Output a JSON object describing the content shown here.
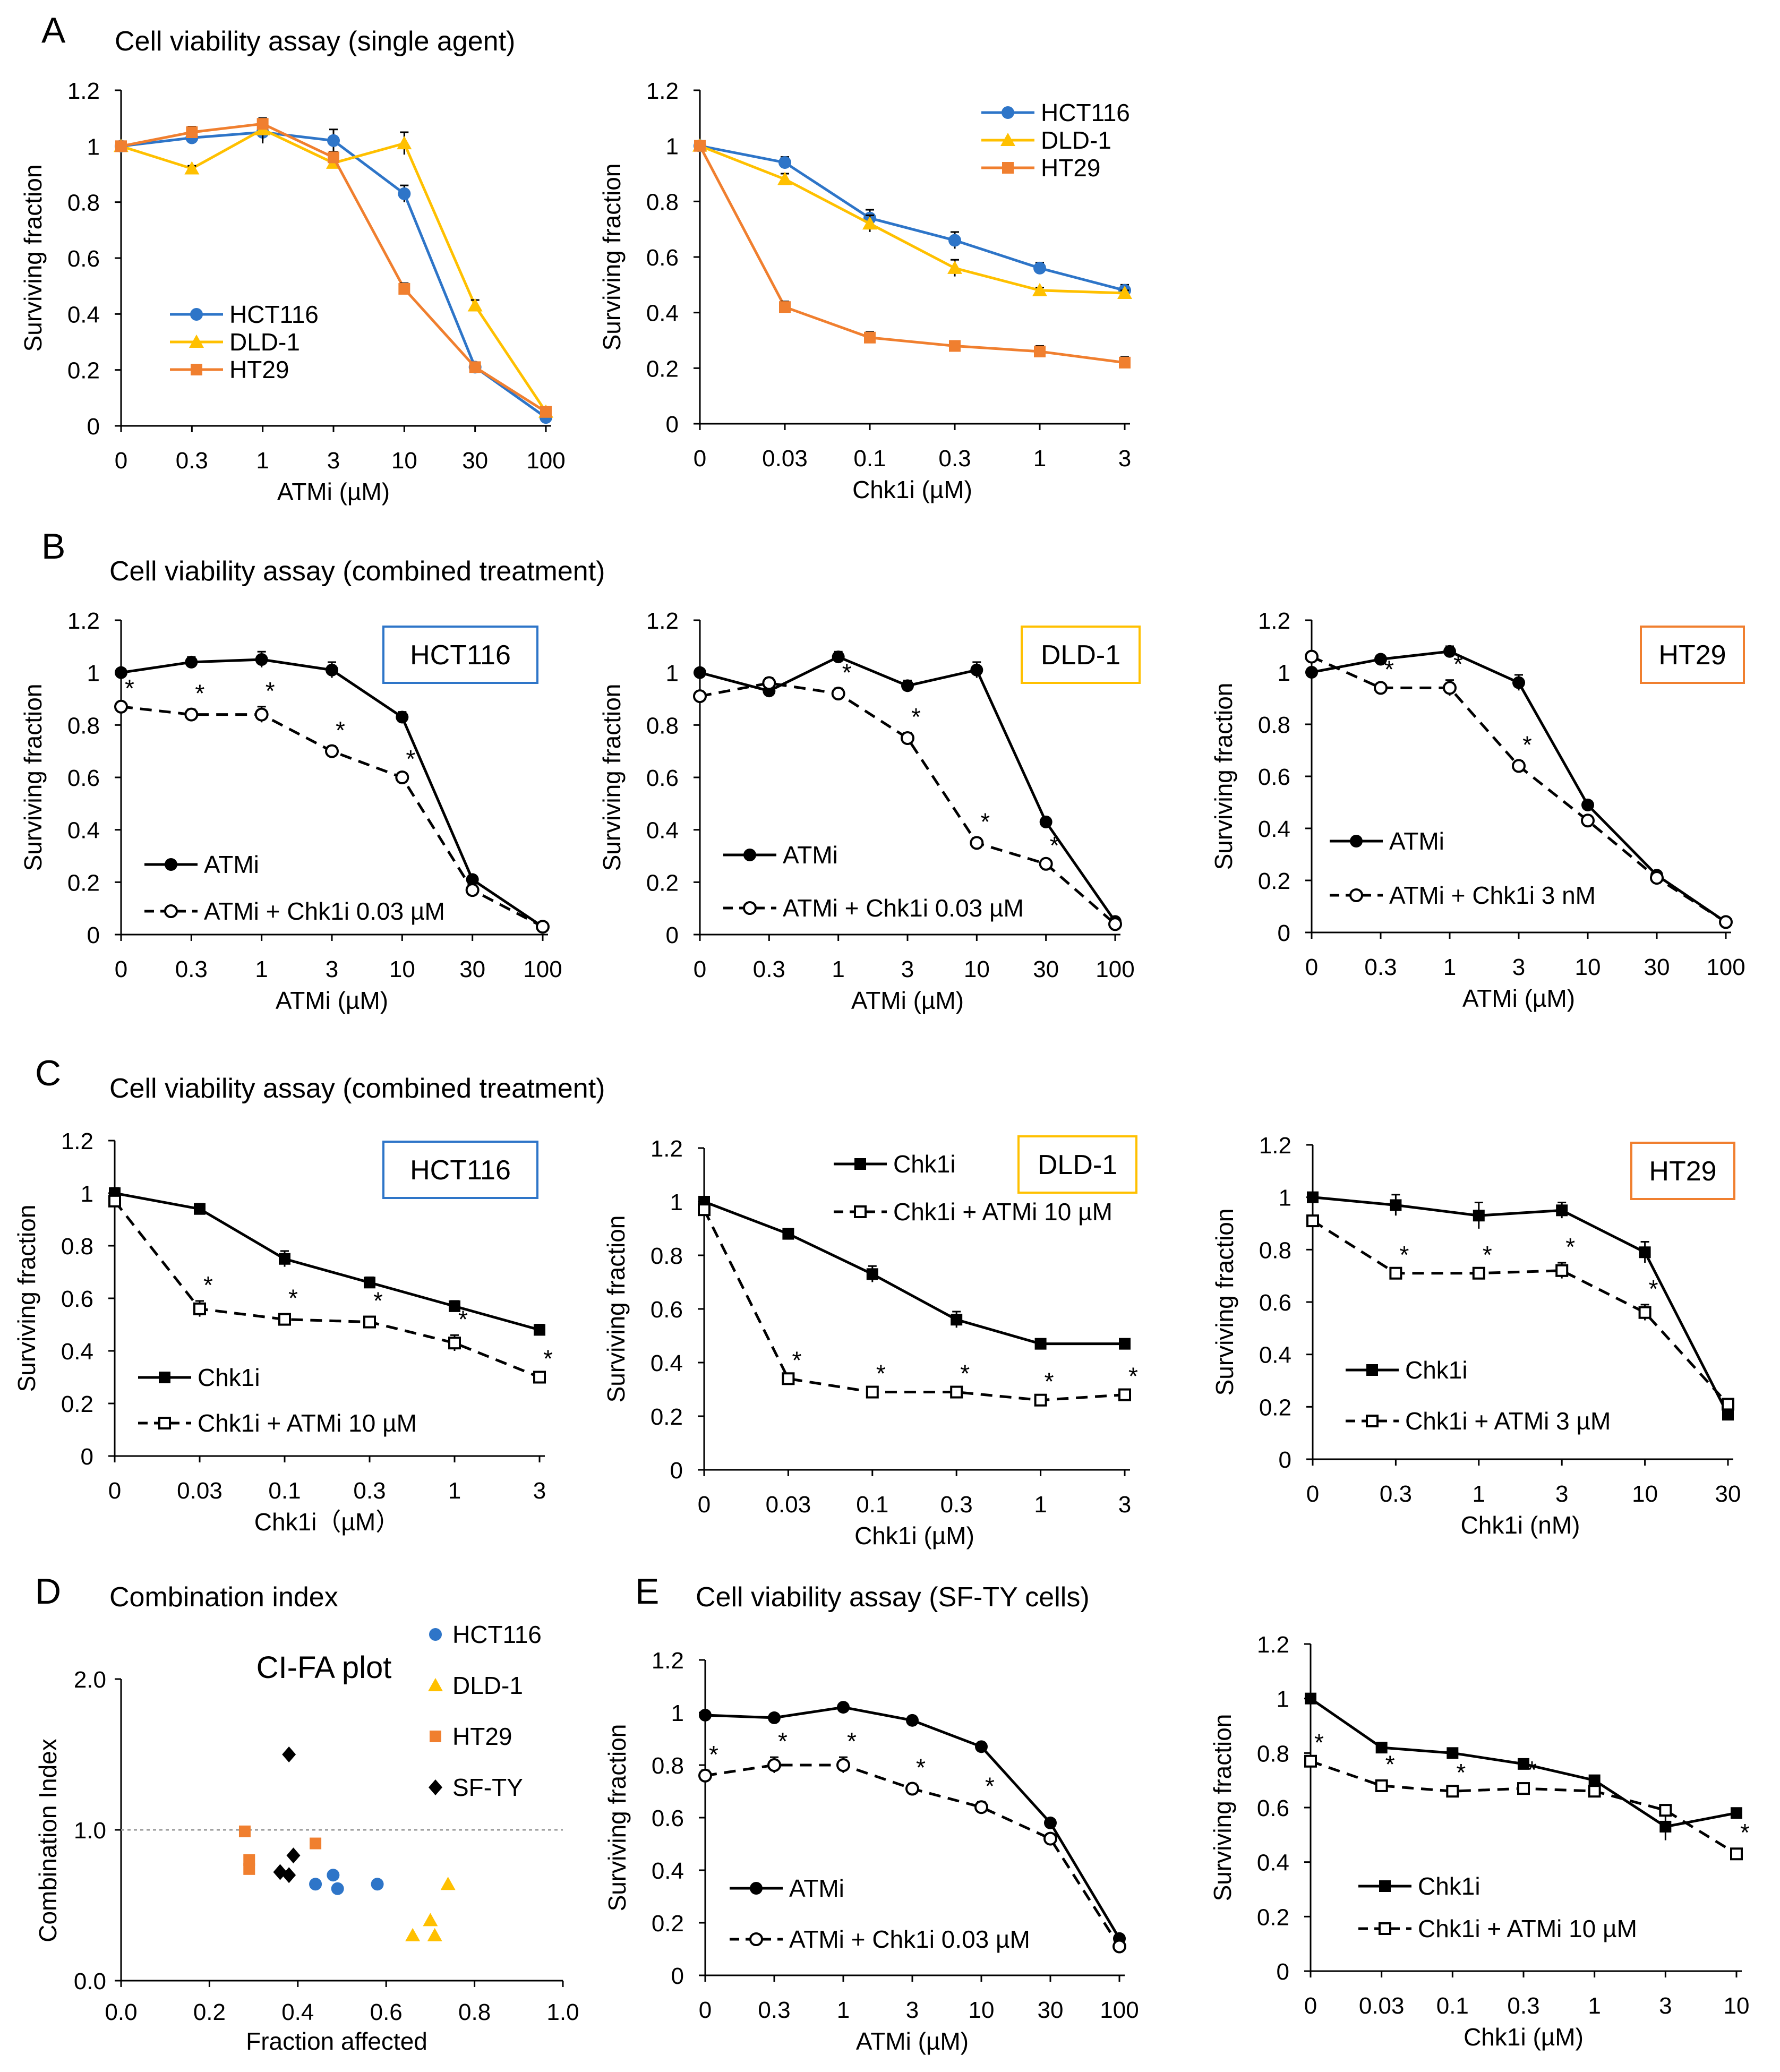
{
  "page": {
    "letters": {
      "A": "A",
      "B": "B",
      "C": "C",
      "D": "D",
      "E": "E"
    },
    "titles": {
      "A": "Cell viability assay (single agent)",
      "B": "Cell viability assay (combined treatment)",
      "C": "Cell viability assay (combined treatment)",
      "D": "Combination index",
      "E": "Cell viability assay (SF-TY cells)"
    }
  },
  "colors": {
    "HCT116": "#2E75C8",
    "DLD-1": "#FFC000",
    "HT29": "#F07F2F",
    "SF-TY": "#000000"
  },
  "chart_data": [
    {
      "id": "A1",
      "type": "line",
      "categories": [
        "0",
        "0.3",
        "1",
        "3",
        "10",
        "30",
        "100"
      ],
      "xlabel": "ATMi (µM)",
      "ylabel": "Surviving fraction",
      "ylim": [
        0,
        1.2
      ],
      "yticks": [
        "0",
        "0.2",
        "0.4",
        "0.6",
        "0.8",
        "1",
        "1.2"
      ],
      "legend": "center-left",
      "series": [
        {
          "name": "HCT116",
          "color": "#2E75C8",
          "marker": "circle",
          "values": [
            1.0,
            1.03,
            1.05,
            1.02,
            0.83,
            0.21,
            0.03
          ],
          "errors": [
            0.01,
            0.02,
            0.04,
            0.04,
            0.03,
            0.01,
            0.01
          ]
        },
        {
          "name": "DLD-1",
          "color": "#FFC000",
          "marker": "triangle",
          "values": [
            1.0,
            0.92,
            1.06,
            0.94,
            1.01,
            0.43,
            0.05
          ],
          "errors": [
            0.01,
            0.01,
            0.04,
            0.02,
            0.04,
            0.02,
            0.01
          ]
        },
        {
          "name": "HT29",
          "color": "#F07F2F",
          "marker": "square",
          "values": [
            1.0,
            1.05,
            1.08,
            0.96,
            0.49,
            0.21,
            0.05
          ],
          "errors": [
            0.01,
            0.02,
            0.02,
            0.02,
            0.02,
            0.01,
            0.01
          ]
        }
      ]
    },
    {
      "id": "A2",
      "type": "line",
      "categories": [
        "0",
        "0.03",
        "0.1",
        "0.3",
        "1",
        "3"
      ],
      "xlabel": "Chk1i (µM)",
      "ylabel": "Surviving fraction",
      "ylim": [
        0,
        1.2
      ],
      "yticks": [
        "0",
        "0.2",
        "0.4",
        "0.6",
        "0.8",
        "1",
        "1.2"
      ],
      "legend": "top-right",
      "series": [
        {
          "name": "HCT116",
          "color": "#2E75C8",
          "marker": "circle",
          "values": [
            1.0,
            0.94,
            0.74,
            0.66,
            0.56,
            0.48
          ],
          "errors": [
            0.01,
            0.02,
            0.03,
            0.03,
            0.02,
            0.02
          ]
        },
        {
          "name": "DLD-1",
          "color": "#FFC000",
          "marker": "triangle",
          "values": [
            1.0,
            0.88,
            0.72,
            0.56,
            0.48,
            0.47
          ],
          "errors": [
            0.01,
            0.02,
            0.03,
            0.03,
            0.01,
            0.01
          ]
        },
        {
          "name": "HT29",
          "color": "#F07F2F",
          "marker": "square",
          "values": [
            1.0,
            0.42,
            0.31,
            0.28,
            0.26,
            0.22
          ],
          "errors": [
            0.01,
            0.02,
            0.02,
            0.01,
            0.02,
            0.02
          ]
        }
      ]
    },
    {
      "id": "B1",
      "type": "line",
      "cellline": "HCT116",
      "cellline_color": "#2E75C8",
      "categories": [
        "0",
        "0.3",
        "1",
        "3",
        "10",
        "30",
        "100"
      ],
      "xlabel": "ATMi (µM)",
      "ylabel": "Surviving fraction",
      "ylim": [
        0,
        1.2
      ],
      "yticks": [
        "0",
        "0.2",
        "0.4",
        "0.6",
        "0.8",
        "1",
        "1.2"
      ],
      "legend": "bottom-left",
      "series": [
        {
          "name": "ATMi",
          "marker": "filled-circle",
          "dashed": false,
          "values": [
            1.0,
            1.04,
            1.05,
            1.01,
            0.83,
            0.21,
            0.03
          ],
          "errors": [
            0.01,
            0.02,
            0.03,
            0.03,
            0.02,
            0.01,
            0.01
          ]
        },
        {
          "name": "ATMi + Chk1i 0.03 µM",
          "marker": "open-circle",
          "dashed": true,
          "values": [
            0.87,
            0.84,
            0.84,
            0.7,
            0.6,
            0.17,
            0.03
          ],
          "errors": [
            0.01,
            0.02,
            0.03,
            0.02,
            0.01,
            0.01,
            0.01
          ]
        }
      ],
      "significant": [
        "*",
        "*",
        "*",
        "*",
        "*",
        "",
        ""
      ]
    },
    {
      "id": "B2",
      "type": "line",
      "cellline": "DLD-1",
      "cellline_color": "#FFC000",
      "categories": [
        "0",
        "0.3",
        "1",
        "3",
        "10",
        "30",
        "100"
      ],
      "xlabel": "ATMi (µM)",
      "ylabel": "Surviving fraction",
      "ylim": [
        0,
        1.2
      ],
      "yticks": [
        "0",
        "0.2",
        "0.4",
        "0.6",
        "0.8",
        "1",
        "1.2"
      ],
      "legend": "bottom-left",
      "series": [
        {
          "name": "ATMi",
          "marker": "filled-circle",
          "dashed": false,
          "values": [
            1.0,
            0.93,
            1.06,
            0.95,
            1.01,
            0.43,
            0.05
          ],
          "errors": [
            0.01,
            0.02,
            0.02,
            0.02,
            0.03,
            0.01,
            0.01
          ]
        },
        {
          "name": "ATMi + Chk1i 0.03 µM",
          "marker": "open-circle",
          "dashed": true,
          "values": [
            0.91,
            0.96,
            0.92,
            0.75,
            0.35,
            0.27,
            0.04
          ],
          "errors": [
            0.01,
            0.02,
            0.02,
            0.02,
            0.02,
            0.01,
            0.01
          ]
        }
      ],
      "significant": [
        "",
        "",
        "*",
        "*",
        "*",
        "*",
        ""
      ]
    },
    {
      "id": "B3",
      "type": "line",
      "cellline": "HT29",
      "cellline_color": "#F07F2F",
      "categories": [
        "0",
        "0.3",
        "1",
        "3",
        "10",
        "30",
        "100"
      ],
      "xlabel": "ATMi (µM)",
      "ylabel": "Surviving fraction",
      "ylim": [
        0,
        1.2
      ],
      "yticks": [
        "0",
        "0.2",
        "0.4",
        "0.6",
        "0.8",
        "1",
        "1.2"
      ],
      "legend": "bottom-left",
      "series": [
        {
          "name": "ATMi",
          "marker": "filled-circle",
          "dashed": false,
          "values": [
            1.0,
            1.05,
            1.08,
            0.96,
            0.49,
            0.22,
            0.04
          ],
          "errors": [
            0.01,
            0.01,
            0.02,
            0.03,
            0.01,
            0.01,
            0.01
          ]
        },
        {
          "name": "ATMi + Chk1i 3 nM",
          "marker": "open-circle",
          "dashed": true,
          "values": [
            1.06,
            0.94,
            0.94,
            0.64,
            0.43,
            0.21,
            0.04
          ],
          "errors": [
            0.01,
            0.01,
            0.03,
            0.02,
            0.01,
            0.01,
            0.01
          ]
        }
      ],
      "significant": [
        "",
        "*",
        "*",
        "*",
        "",
        "",
        ""
      ]
    },
    {
      "id": "C1",
      "type": "line",
      "cellline": "HCT116",
      "cellline_color": "#2E75C8",
      "categories": [
        "0",
        "0.03",
        "0.1",
        "0.3",
        "1",
        "3"
      ],
      "xlabel": "Chk1i（µM）",
      "ylabel": "Surviving fraction",
      "ylim": [
        0,
        1.2
      ],
      "yticks": [
        "0",
        "0.2",
        "0.4",
        "0.6",
        "0.8",
        "1",
        "1.2"
      ],
      "legend": "bottom-left",
      "series": [
        {
          "name": "Chk1i",
          "marker": "filled-square",
          "dashed": false,
          "values": [
            1.0,
            0.94,
            0.75,
            0.66,
            0.57,
            0.48
          ],
          "errors": [
            0.02,
            0.02,
            0.03,
            0.02,
            0.02,
            0.02
          ]
        },
        {
          "name": "Chk1i + ATMi 10 µM",
          "marker": "open-square",
          "dashed": true,
          "values": [
            0.97,
            0.56,
            0.52,
            0.51,
            0.43,
            0.3
          ],
          "errors": [
            0.01,
            0.03,
            0.02,
            0.02,
            0.03,
            0.01
          ]
        }
      ],
      "significant": [
        "",
        "*",
        "*",
        "*",
        "*",
        "*"
      ]
    },
    {
      "id": "C2",
      "type": "line",
      "cellline": "DLD-1",
      "cellline_color": "#FFC000",
      "categories": [
        "0",
        "0.03",
        "0.1",
        "0.3",
        "1",
        "3"
      ],
      "xlabel": "Chk1i (µM)",
      "ylabel": "Surviving fraction",
      "ylim": [
        0,
        1.2
      ],
      "yticks": [
        "0",
        "0.2",
        "0.4",
        "0.6",
        "0.8",
        "1",
        "1.2"
      ],
      "legend": "top-right",
      "series": [
        {
          "name": "Chk1i",
          "marker": "filled-square",
          "dashed": false,
          "values": [
            1.0,
            0.88,
            0.73,
            0.56,
            0.47,
            0.47
          ],
          "errors": [
            0.01,
            0.01,
            0.03,
            0.03,
            0.01,
            0.01
          ]
        },
        {
          "name": "Chk1i + ATMi 10 µM",
          "marker": "open-square",
          "dashed": true,
          "values": [
            0.97,
            0.34,
            0.29,
            0.29,
            0.26,
            0.28
          ],
          "errors": [
            0.01,
            0.01,
            0.01,
            0.01,
            0.01,
            0.01
          ]
        }
      ],
      "significant": [
        "",
        "*",
        "*",
        "*",
        "*",
        "*"
      ]
    },
    {
      "id": "C3",
      "type": "line",
      "cellline": "HT29",
      "cellline_color": "#F07F2F",
      "categories": [
        "0",
        "0.3",
        "1",
        "3",
        "10",
        "30"
      ],
      "xlabel": "Chk1i (nM)",
      "ylabel": "Surviving fraction",
      "ylim": [
        0,
        1.2
      ],
      "yticks": [
        "0",
        "0.2",
        "0.4",
        "0.6",
        "0.8",
        "1",
        "1.2"
      ],
      "legend": "bottom-left",
      "series": [
        {
          "name": "Chk1i",
          "marker": "filled-square",
          "dashed": false,
          "values": [
            1.0,
            0.97,
            0.93,
            0.95,
            0.79,
            0.17
          ],
          "errors": [
            0.01,
            0.04,
            0.05,
            0.03,
            0.04,
            0.01
          ]
        },
        {
          "name": "Chk1i + ATMi 3 µM",
          "marker": "open-square",
          "dashed": true,
          "values": [
            0.91,
            0.71,
            0.71,
            0.72,
            0.56,
            0.21
          ],
          "errors": [
            0.01,
            0.01,
            0.01,
            0.03,
            0.03,
            0.01
          ]
        }
      ],
      "significant": [
        "",
        "*",
        "*",
        "*",
        "*",
        ""
      ]
    },
    {
      "id": "D",
      "type": "scatter",
      "title": "CI-FA plot",
      "xlabel": "Fraction affected",
      "ylabel": "Combination Index",
      "xlim": [
        0,
        1.0
      ],
      "ylim": [
        0,
        2.0
      ],
      "xticks": [
        "0.0",
        "0.2",
        "0.4",
        "0.6",
        "0.8",
        "1.0"
      ],
      "yticks": [
        "0.0",
        "1.0",
        "2.0"
      ],
      "reference_line": 1.0,
      "legend": "top-right",
      "series": [
        {
          "name": "HCT116",
          "color": "#2E75C8",
          "marker": "circle",
          "x": [
            0.44,
            0.48,
            0.49,
            0.58
          ],
          "y": [
            0.64,
            0.7,
            0.61,
            0.64
          ]
        },
        {
          "name": "DLD-1",
          "color": "#FFC000",
          "marker": "triangle",
          "x": [
            0.66,
            0.7,
            0.71,
            0.74
          ],
          "y": [
            0.3,
            0.4,
            0.3,
            0.64
          ]
        },
        {
          "name": "HT29",
          "color": "#F07F2F",
          "marker": "square",
          "x": [
            0.28,
            0.29,
            0.29,
            0.44
          ],
          "y": [
            0.99,
            0.8,
            0.74,
            0.91
          ]
        },
        {
          "name": "SF-TY",
          "color": "#000000",
          "marker": "diamond",
          "x": [
            0.36,
            0.38,
            0.38,
            0.39
          ],
          "y": [
            0.72,
            0.7,
            1.5,
            0.83
          ]
        }
      ]
    },
    {
      "id": "E1",
      "type": "line",
      "categories": [
        "0",
        "0.3",
        "1",
        "3",
        "10",
        "30",
        "100"
      ],
      "xlabel": "ATMi (µM)",
      "ylabel": "Surviving fraction",
      "ylim": [
        0,
        1.2
      ],
      "yticks": [
        "0",
        "0.2",
        "0.4",
        "0.6",
        "0.8",
        "1",
        "1.2"
      ],
      "legend": "bottom-left",
      "series": [
        {
          "name": "ATMi",
          "marker": "filled-circle",
          "dashed": false,
          "values": [
            0.99,
            0.98,
            1.02,
            0.97,
            0.87,
            0.58,
            0.14
          ],
          "errors": [
            0.01,
            0.01,
            0.01,
            0.01,
            0.01,
            0.01,
            0.01
          ]
        },
        {
          "name": "ATMi + Chk1i 0.03 µM",
          "marker": "open-circle",
          "dashed": true,
          "values": [
            0.76,
            0.8,
            0.8,
            0.71,
            0.64,
            0.52,
            0.11
          ],
          "errors": [
            0.02,
            0.03,
            0.03,
            0.02,
            0.02,
            0.01,
            0.01
          ]
        }
      ],
      "significant": [
        "*",
        "*",
        "*",
        "*",
        "*",
        "",
        ""
      ]
    },
    {
      "id": "E2",
      "type": "line",
      "categories": [
        "0",
        "0.03",
        "0.1",
        "0.3",
        "1",
        "3",
        "10"
      ],
      "xlabel": "Chk1i (µM)",
      "ylabel": "Surviving fraction",
      "ylim": [
        0,
        1.2
      ],
      "yticks": [
        "0",
        "0.2",
        "0.4",
        "0.6",
        "0.8",
        "1",
        "1.2"
      ],
      "legend": "bottom-left",
      "series": [
        {
          "name": "Chk1i",
          "marker": "filled-square",
          "dashed": false,
          "values": [
            1.0,
            0.82,
            0.8,
            0.76,
            0.7,
            0.53,
            0.58
          ],
          "errors": [
            0.01,
            0.01,
            0.01,
            0.01,
            0.01,
            0.05,
            0.01
          ]
        },
        {
          "name": "Chk1i + ATMi 10 µM",
          "marker": "open-square",
          "dashed": true,
          "values": [
            0.77,
            0.68,
            0.66,
            0.67,
            0.66,
            0.59,
            0.43
          ],
          "errors": [
            0.01,
            0.02,
            0.01,
            0.01,
            0.01,
            0.01,
            0.02
          ]
        }
      ],
      "significant": [
        "*",
        "*",
        "*",
        "*",
        "",
        "",
        "*"
      ]
    }
  ]
}
